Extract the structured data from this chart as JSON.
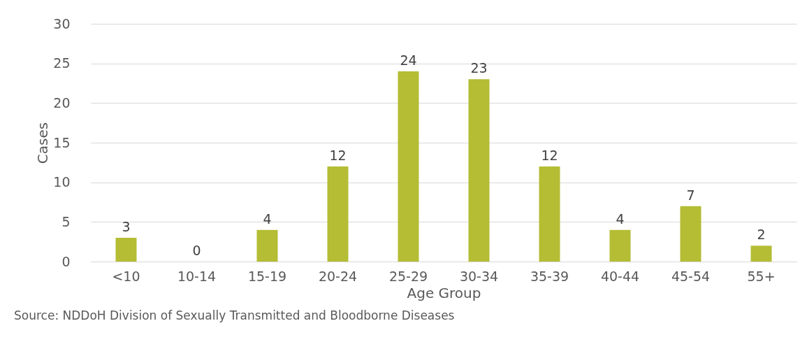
{
  "chart_data": {
    "type": "bar",
    "xlabel": "Age Group",
    "ylabel": "Cases",
    "categories": [
      "<10",
      "10-14",
      "15-19",
      "20-24",
      "25-29",
      "30-34",
      "35-39",
      "40-44",
      "45-54",
      "55+"
    ],
    "values": [
      3,
      0,
      4,
      12,
      24,
      23,
      12,
      4,
      7,
      2
    ],
    "color": "#b4bd34",
    "ylim": [
      0,
      30
    ],
    "yticks": [
      0,
      5,
      10,
      15,
      20,
      25,
      30
    ],
    "grid": "y",
    "data_labels": true,
    "annotations": [
      "Source: NDDoH Division of Sexually Transmitted and Bloodborne Diseases"
    ]
  }
}
